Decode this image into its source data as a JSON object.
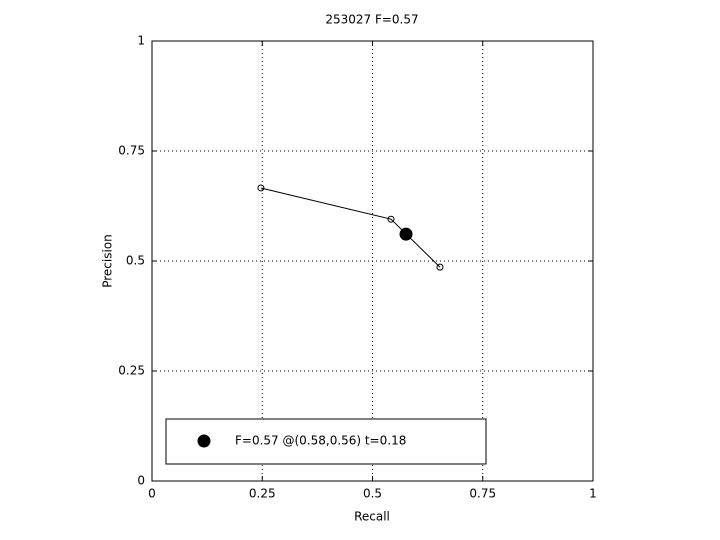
{
  "chart_data": {
    "type": "line",
    "title": "253027 F=0.57",
    "x_label": "Recall",
    "y_label": "Precision",
    "xlim": [
      0,
      1
    ],
    "ylim": [
      0,
      1
    ],
    "xticks": [
      0,
      0.25,
      0.5,
      0.75,
      1
    ],
    "yticks": [
      0,
      0.25,
      0.5,
      0.75,
      1
    ],
    "grid": true,
    "legend": "lower left",
    "series": [
      {
        "color": "#000000",
        "filled": false,
        "x": [
          0.247,
          0.542,
          0.653
        ],
        "values": [
          0.666,
          0.595,
          0.486
        ]
      },
      {
        "name": "F=0.57 @(0.58,0.56) t=0.18",
        "color": "#000000",
        "filled": true,
        "x": [
          0.576
        ],
        "values": [
          0.561
        ]
      }
    ]
  }
}
